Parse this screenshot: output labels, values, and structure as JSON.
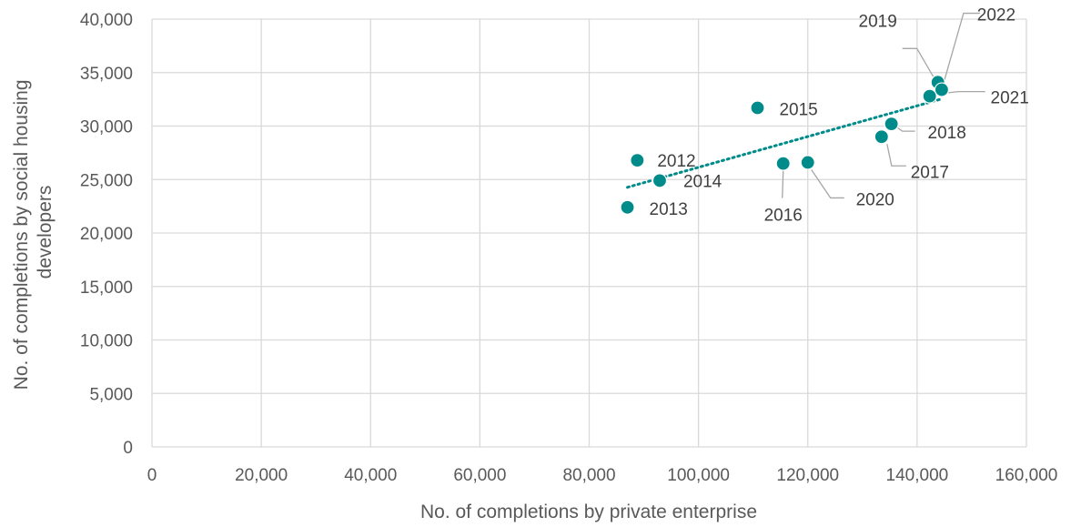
{
  "chart_data": {
    "type": "scatter",
    "xlabel": "No. of completions by private enterprise",
    "ylabel_lines": [
      "No. of completions by social housing",
      "developers"
    ],
    "xlim": [
      0,
      160000
    ],
    "ylim": [
      0,
      40000
    ],
    "x_ticks": [
      0,
      20000,
      40000,
      60000,
      80000,
      100000,
      120000,
      140000,
      160000
    ],
    "y_ticks": [
      0,
      5000,
      10000,
      15000,
      20000,
      25000,
      30000,
      35000,
      40000
    ],
    "x_tick_labels": [
      "0",
      "20,000",
      "40,000",
      "60,000",
      "80,000",
      "100,000",
      "120,000",
      "140,000",
      "160,000"
    ],
    "y_tick_labels": [
      "0",
      "5,000",
      "10,000",
      "15,000",
      "20,000",
      "25,000",
      "30,000",
      "35,000",
      "40,000"
    ],
    "grid": true,
    "marker_color": "#008b8b",
    "trendline": {
      "type": "linear",
      "style": "dotted",
      "color": "#008b8b"
    },
    "points": [
      {
        "label": "2012",
        "x": 88800,
        "y": 26800
      },
      {
        "label": "2013",
        "x": 87000,
        "y": 22400
      },
      {
        "label": "2014",
        "x": 92900,
        "y": 24900
      },
      {
        "label": "2015",
        "x": 110800,
        "y": 31700
      },
      {
        "label": "2016",
        "x": 115500,
        "y": 26500
      },
      {
        "label": "2017",
        "x": 133500,
        "y": 29000
      },
      {
        "label": "2018",
        "x": 135300,
        "y": 30200
      },
      {
        "label": "2019",
        "x": 143800,
        "y": 34100
      },
      {
        "label": "2020",
        "x": 120000,
        "y": 26600
      },
      {
        "label": "2021",
        "x": 142300,
        "y": 32800
      },
      {
        "label": "2022",
        "x": 144500,
        "y": 33400
      }
    ]
  }
}
